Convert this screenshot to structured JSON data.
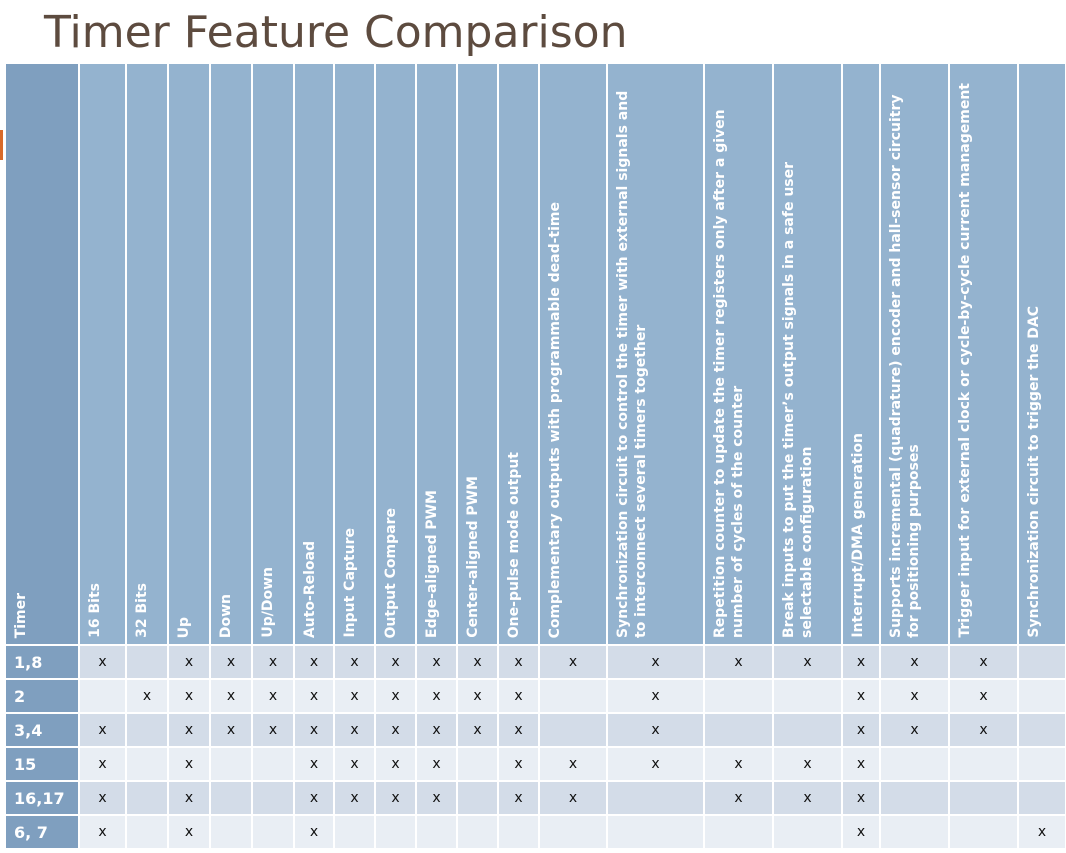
{
  "title": "Timer Feature Comparison",
  "colors": {
    "title": "#5d4b3f",
    "header_bg": "#94b3cf",
    "timer_col_bg": "#7f9fbf",
    "row_dark": "#d3dce8",
    "row_light": "#e9eef4",
    "accent": "#d86a2a"
  },
  "table": {
    "headers": [
      "Timer",
      "16 Bits",
      "32 Bits",
      "Up",
      "Down",
      "Up/Down",
      "Auto-Reload",
      "Input Capture",
      "Output Compare",
      "Edge-aligned PWM",
      "Center-aligned PWM",
      "One-pulse mode output",
      "Complementary outputs with programmable dead-time",
      "Synchronization circuit to control the timer with external signals and to interconnect several timers together",
      "Repetition counter to update the timer registers only after a given number of cycles of the counter",
      "Break inputs to put the timer’s output signals in a safe user selectable configuration",
      "Interrupt/DMA generation",
      "Supports incremental (quadrature) encoder and hall-sensor circuitry for positioning purposes",
      "Trigger input for external clock or cycle-by-cycle current management",
      "Synchronization circuit to trigger the DAC"
    ],
    "rows": [
      [
        "1,8",
        "x",
        "",
        "x",
        "x",
        "x",
        "x",
        "x",
        "x",
        "x",
        "x",
        "x",
        "x",
        "x",
        "x",
        "x",
        "x",
        "x",
        "x",
        ""
      ],
      [
        "2",
        "",
        "x",
        "x",
        "x",
        "x",
        "x",
        "x",
        "x",
        "x",
        "x",
        "x",
        "",
        "x",
        "",
        "",
        "x",
        "x",
        "x",
        ""
      ],
      [
        "3,4",
        "x",
        "",
        "x",
        "x",
        "x",
        "x",
        "x",
        "x",
        "x",
        "x",
        "x",
        "",
        "x",
        "",
        "",
        "x",
        "x",
        "x",
        ""
      ],
      [
        "15",
        "x",
        "",
        "x",
        "",
        "",
        "x",
        "x",
        "x",
        "x",
        "",
        "x",
        "x",
        "x",
        "x",
        "x",
        "x",
        "",
        "",
        ""
      ],
      [
        "16,17",
        "x",
        "",
        "x",
        "",
        "",
        "x",
        "x",
        "x",
        "x",
        "",
        "x",
        "x",
        "",
        "x",
        "x",
        "x",
        "",
        "",
        ""
      ],
      [
        "6, 7",
        "x",
        "",
        "x",
        "",
        "",
        "x",
        "",
        "",
        "",
        "",
        "",
        "",
        "",
        "",
        "",
        "x",
        "",
        "",
        "x"
      ]
    ]
  }
}
